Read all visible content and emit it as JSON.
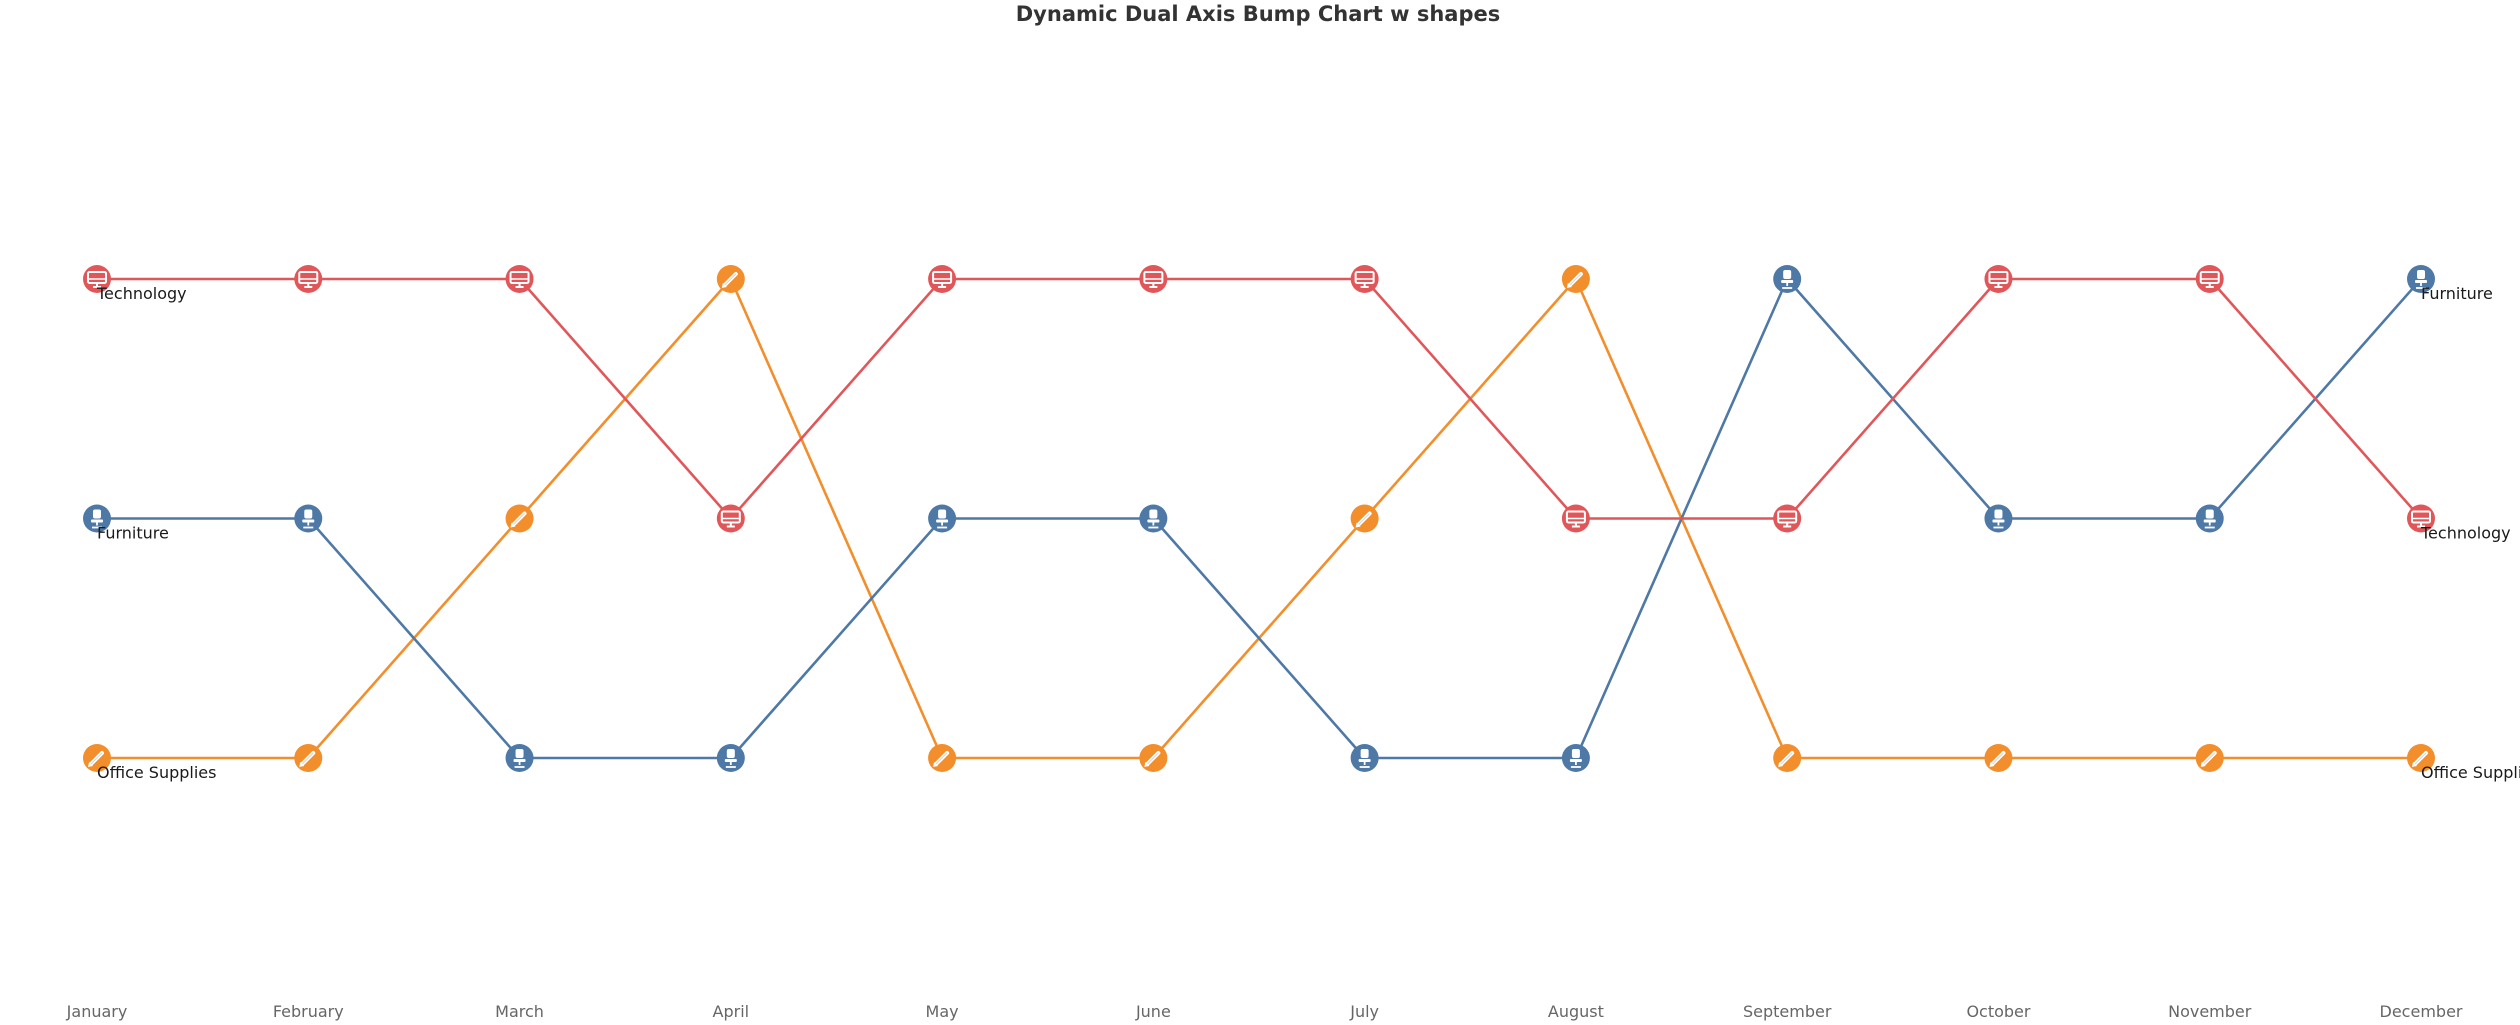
{
  "chart_data": {
    "type": "line",
    "subtype": "bump",
    "title": "Dynamic Dual Axis Bump Chart w shapes",
    "xlabel": "",
    "ylabel": "",
    "categories": [
      "January",
      "February",
      "March",
      "April",
      "May",
      "June",
      "July",
      "August",
      "September",
      "October",
      "November",
      "December"
    ],
    "y_axis": "rank",
    "ylim": [
      1,
      3
    ],
    "y_reversed": true,
    "grid": false,
    "legend": "direct labels at both ends",
    "series": [
      {
        "name": "Technology",
        "color": "#E15759",
        "icon": "monitor-icon",
        "values": [
          1,
          1,
          1,
          2,
          1,
          1,
          1,
          2,
          2,
          1,
          1,
          2
        ]
      },
      {
        "name": "Furniture",
        "color": "#4E79A7",
        "icon": "chair-icon",
        "values": [
          2,
          2,
          3,
          3,
          2,
          2,
          3,
          3,
          1,
          2,
          2,
          1
        ]
      },
      {
        "name": "Office Supplies",
        "color": "#F28E2B",
        "icon": "pencil-icon",
        "values": [
          3,
          3,
          2,
          1,
          3,
          3,
          2,
          1,
          3,
          3,
          3,
          3
        ]
      }
    ]
  }
}
